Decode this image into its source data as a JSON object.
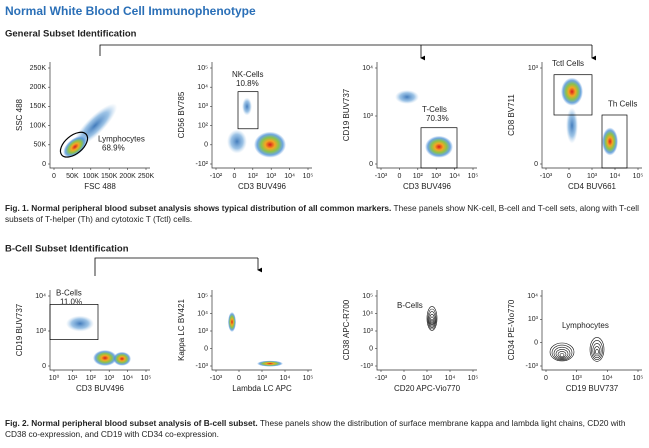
{
  "header": {
    "title": "Normal White Blood Cell Immunophenotype"
  },
  "sections": [
    {
      "heading": "General Subset Identification",
      "panels": [
        {
          "y_label": "SSC 488",
          "x_label": "FSC 488",
          "yticks": [
            "250K",
            "200K",
            "150K",
            "100K",
            "50K",
            "0"
          ],
          "xticks": [
            "0",
            "50K",
            "100K",
            "150K",
            "200K",
            "250K"
          ],
          "gates": [
            {
              "label": "Lymphocytes",
              "percent": "68.9%"
            }
          ]
        },
        {
          "y_label": "CD56 BV785",
          "x_label": "CD3 BUV496",
          "yticks": [
            "10⁵",
            "10⁴",
            "10³",
            "10²",
            "0",
            "-10²"
          ],
          "xticks": [
            "-10²",
            "0",
            "10²",
            "10³",
            "10⁴",
            "10⁵"
          ],
          "gates": [
            {
              "label": "NK-Cells",
              "percent": "10.8%"
            }
          ]
        },
        {
          "y_label": "CD19 BUV737",
          "x_label": "CD3 BUV496",
          "yticks": [
            "10⁴",
            "10³",
            "0"
          ],
          "xticks": [
            "-10³",
            "0",
            "10²",
            "10³",
            "10⁴",
            "10⁵"
          ],
          "gates": [
            {
              "label": "T-Cells",
              "percent": "70.3%"
            }
          ]
        },
        {
          "y_label": "CD8 BV711",
          "x_label": "CD4 BUV661",
          "yticks": [
            "10³",
            "0"
          ],
          "xticks": [
            "-10³",
            "0",
            "10³",
            "10⁴",
            "10⁵"
          ],
          "gates": [
            {
              "label": "Tctl Cells"
            },
            {
              "label": "Th Cells"
            }
          ]
        }
      ],
      "caption": {
        "lead": "Fig. 1.  Normal peripheral blood subset analysis shows typical distribution of all common markers.",
        "text": "These panels show NK-cell, B-cell and T-cell sets, along with T-cell subsets of T-helper (Th) and cytotoxic T (Tctl) cells."
      }
    },
    {
      "heading": "B-Cell Subset Identification",
      "panels": [
        {
          "y_label": "CD19 BUV737",
          "x_label": "CD3 BUV496",
          "yticks": [
            "10⁴",
            "10³",
            "0"
          ],
          "xticks": [
            "10⁰",
            "10¹",
            "10²",
            "10³",
            "10⁴",
            "10⁵"
          ],
          "gates": [
            {
              "label": "B-Cells",
              "percent": "11.0%"
            }
          ]
        },
        {
          "y_label": "Kappa LC BV421",
          "x_label": "Lambda LC APC",
          "yticks": [
            "10⁵",
            "10⁴",
            "10³",
            "0",
            "-10³"
          ],
          "xticks": [
            "-10³",
            "0",
            "10³",
            "10⁴",
            "10⁵"
          ],
          "gates": []
        },
        {
          "y_label": "CD38 APC-R700",
          "x_label": "CD20 APC-Vio770",
          "yticks": [
            "10⁵",
            "10⁴",
            "10³",
            "0",
            "-10³"
          ],
          "xticks": [
            "-10³",
            "0",
            "10³",
            "10⁴",
            "10⁵"
          ],
          "gates": [
            {
              "label": "B-Cells"
            }
          ]
        },
        {
          "y_label": "CD34 PE-Vio770",
          "x_label": "CD19 BUV737",
          "yticks": [
            "10⁴",
            "10³",
            "0",
            "-10³"
          ],
          "xticks": [
            "0",
            "10³",
            "10⁴",
            "10⁵"
          ],
          "gates": [
            {
              "label": "Lymphocytes"
            }
          ]
        }
      ],
      "caption": {
        "lead": "Fig. 2.  Normal peripheral blood subset analysis of B-cell subset.",
        "text": "These panels show the distribution of surface membrane kappa and lambda light chains, CD20 with CD38 co-expression, and CD19 with CD34 co-expression."
      }
    }
  ]
}
